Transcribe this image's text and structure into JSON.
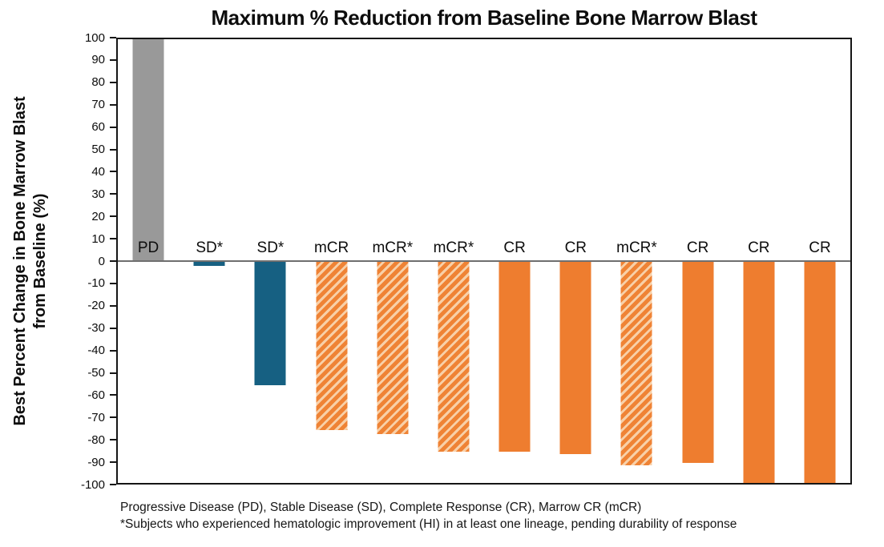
{
  "title": "Maximum % Reduction from Baseline Bone Marrow Blast",
  "y_axis": {
    "label_line1": "Best Percent Change in Bone Marrow Blast",
    "label_line2": "from Baseline (%)",
    "min": -100,
    "max": 100,
    "step": 10
  },
  "footnotes": {
    "line1": "Progressive Disease (PD), Stable Disease (SD), Complete Response (CR), Marrow CR (mCR)",
    "line2": "*Subjects who experienced hematologic improvement (HI) in at least one lineage, pending durability of response"
  },
  "colors": {
    "gray_bar": "#999999",
    "blue_bar": "#166082",
    "orange_bar": "#ee7d2f",
    "orange_hatch_light": "#f8d0a8",
    "zero_line": "#6f6f6f",
    "frame": "#161616"
  },
  "chart_data": {
    "type": "bar",
    "title": "Maximum % Reduction from Baseline Bone Marrow Blast",
    "xlabel": "",
    "ylabel": "Best Percent Change in Bone Marrow Blast from Baseline (%)",
    "ylim": [
      -100,
      100
    ],
    "y_tick_step": 10,
    "grid": false,
    "legend_position": "none",
    "categories": [
      "PD",
      "SD*",
      "SD*",
      "mCR",
      "mCR*",
      "mCR*",
      "CR",
      "CR",
      "mCR*",
      "CR",
      "CR",
      "CR"
    ],
    "values": [
      100,
      -2,
      -56,
      -76,
      -78,
      -86,
      -86,
      -87,
      -92,
      -91,
      -100,
      -100
    ],
    "bar_styles": [
      "gray-solid",
      "blue-solid",
      "blue-solid",
      "orange-hatched",
      "orange-hatched",
      "orange-hatched",
      "orange-solid",
      "orange-solid",
      "orange-hatched",
      "orange-solid",
      "orange-solid",
      "orange-solid"
    ],
    "annotations": [
      "Progressive Disease (PD), Stable Disease (SD), Complete Response (CR), Marrow CR (mCR)",
      "*Subjects who experienced hematologic improvement (HI) in at least one lineage, pending durability of response"
    ]
  }
}
